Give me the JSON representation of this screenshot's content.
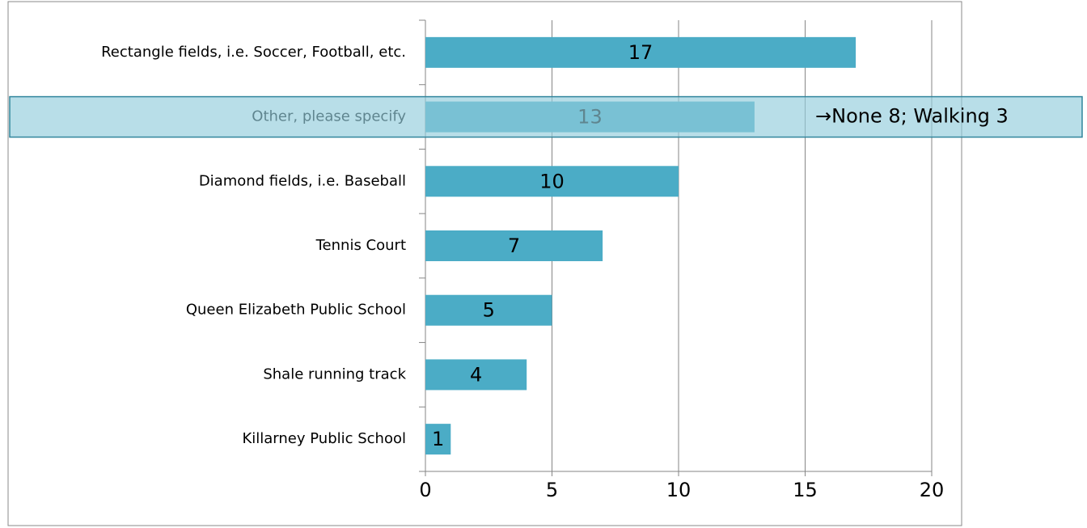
{
  "chart_data": {
    "type": "bar",
    "orientation": "horizontal",
    "categories": [
      "Rectangle fields, i.e. Soccer, Football, etc.",
      "Other, please specify",
      "Diamond fields, i.e. Baseball",
      "Tennis Court",
      "Queen Elizabeth Public School",
      "Shale running track",
      "Killarney Public School"
    ],
    "values": [
      17,
      13,
      10,
      7,
      5,
      4,
      1
    ],
    "color": "#4bacc6",
    "xlim": [
      0,
      20
    ],
    "xticks": [
      0,
      5,
      10,
      15,
      20
    ],
    "grid": true,
    "annotation": "→None 8; Walking 3"
  }
}
